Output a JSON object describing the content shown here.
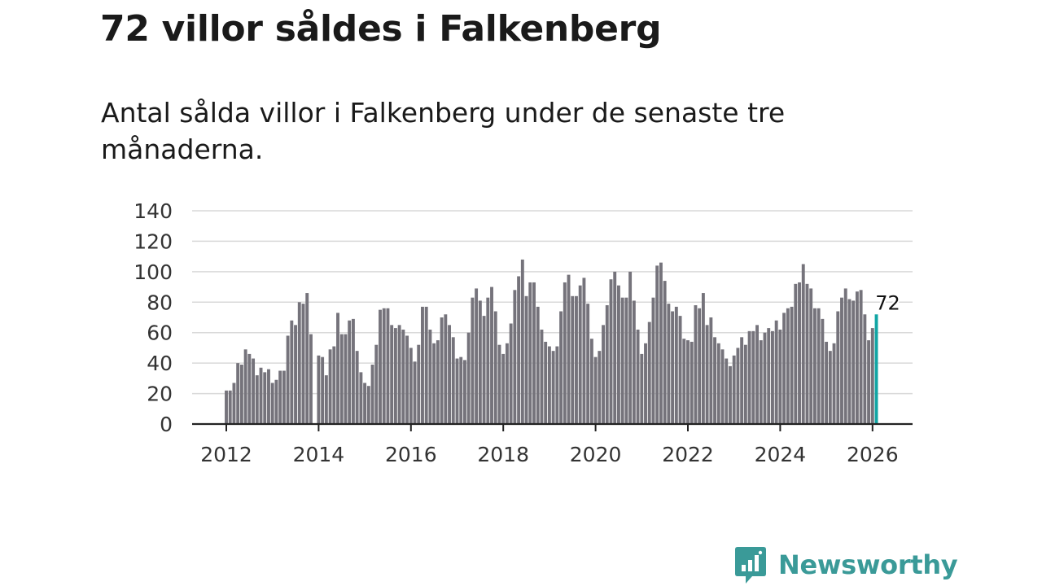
{
  "title": "72 villor såldes i Falkenberg",
  "subtitle": "Antal sålda villor i Falkenberg under de senaste tre månaderna.",
  "brand": {
    "name": "Newsworthy",
    "color": "#3a9a98"
  },
  "chart_data": {
    "type": "bar",
    "title": "",
    "xlabel": "",
    "ylabel": "",
    "ylim": [
      0,
      140
    ],
    "yticks": [
      "0",
      "20",
      "40",
      "60",
      "80",
      "100",
      "120",
      "140"
    ],
    "xticks": [
      "2012",
      "2014",
      "2016",
      "2018",
      "2020",
      "2022",
      "2024",
      "2026"
    ],
    "x_start": "2012-01",
    "grid": true,
    "bar_color": "#75737b",
    "highlight_color": "#11a5a4",
    "last_value_label": "72",
    "values": [
      22,
      22,
      27,
      40,
      39,
      49,
      46,
      43,
      32,
      37,
      34,
      36,
      27,
      29,
      35,
      35,
      58,
      68,
      65,
      80,
      79,
      86,
      59,
      0,
      45,
      44,
      32,
      49,
      51,
      73,
      59,
      59,
      68,
      69,
      48,
      34,
      27,
      25,
      39,
      52,
      75,
      76,
      76,
      65,
      63,
      65,
      62,
      58,
      50,
      41,
      52,
      77,
      77,
      62,
      53,
      55,
      70,
      72,
      65,
      57,
      43,
      44,
      42,
      60,
      83,
      89,
      81,
      71,
      83,
      90,
      74,
      52,
      46,
      53,
      66,
      88,
      97,
      108,
      84,
      93,
      93,
      77,
      62,
      54,
      51,
      48,
      51,
      74,
      93,
      98,
      84,
      84,
      91,
      96,
      79,
      56,
      44,
      48,
      65,
      78,
      95,
      100,
      91,
      83,
      83,
      100,
      81,
      62,
      46,
      53,
      67,
      83,
      104,
      106,
      94,
      79,
      74,
      77,
      71,
      56,
      55,
      54,
      78,
      76,
      86,
      65,
      70,
      57,
      53,
      49,
      43,
      38,
      45,
      50,
      57,
      52,
      61,
      61,
      65,
      55,
      60,
      63,
      61,
      68,
      62,
      73,
      76,
      77,
      92,
      93,
      105,
      92,
      89,
      76,
      76,
      69,
      54,
      48,
      53,
      74,
      83,
      89,
      82,
      81,
      87,
      88,
      72,
      55,
      63,
      72
    ]
  }
}
